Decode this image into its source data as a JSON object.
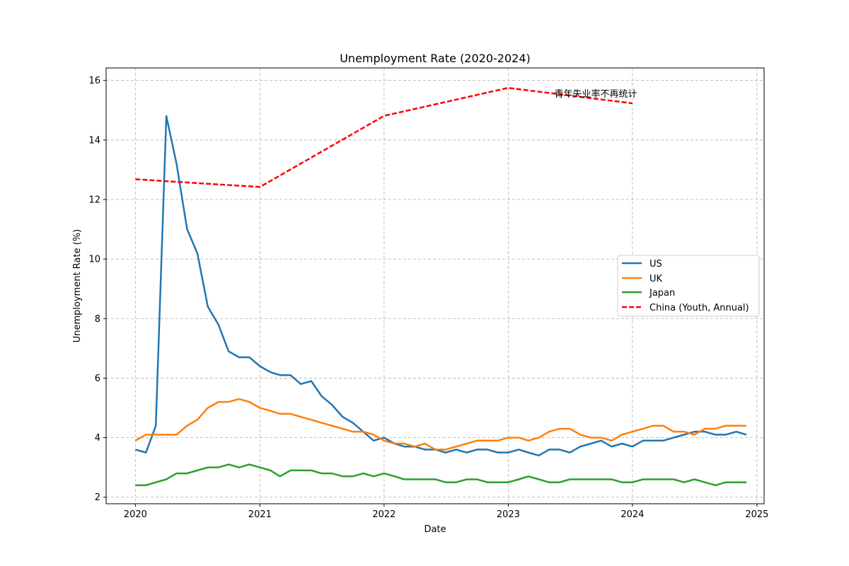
{
  "chart_data": {
    "type": "line",
    "title": "Unemployment Rate (2020-2024)",
    "xlabel": "Date",
    "ylabel": "Unemployment Rate (%)",
    "x_ticks": [
      "2020",
      "2021",
      "2022",
      "2023",
      "2024",
      "2025"
    ],
    "y_ticks": [
      2,
      4,
      6,
      8,
      10,
      12,
      14,
      16
    ],
    "xlim": [
      "2019-10-07",
      "2025-01-22"
    ],
    "ylim": [
      1.78,
      16.42
    ],
    "grid": true,
    "grid_style": "dashed",
    "legend_position": "center-right",
    "annotation": "青年失业率不再统计",
    "months": [
      "2020-01",
      "2020-02",
      "2020-03",
      "2020-04",
      "2020-05",
      "2020-06",
      "2020-07",
      "2020-08",
      "2020-09",
      "2020-10",
      "2020-11",
      "2020-12",
      "2021-01",
      "2021-02",
      "2021-03",
      "2021-04",
      "2021-05",
      "2021-06",
      "2021-07",
      "2021-08",
      "2021-09",
      "2021-10",
      "2021-11",
      "2021-12",
      "2022-01",
      "2022-02",
      "2022-03",
      "2022-04",
      "2022-05",
      "2022-06",
      "2022-07",
      "2022-08",
      "2022-09",
      "2022-10",
      "2022-11",
      "2022-12",
      "2023-01",
      "2023-02",
      "2023-03",
      "2023-04",
      "2023-05",
      "2023-06",
      "2023-07",
      "2023-08",
      "2023-09",
      "2023-10",
      "2023-11",
      "2023-12",
      "2024-01",
      "2024-02",
      "2024-03",
      "2024-04",
      "2024-05",
      "2024-06",
      "2024-07",
      "2024-08",
      "2024-09",
      "2024-10",
      "2024-11",
      "2024-12"
    ],
    "series": [
      {
        "name": "US",
        "color": "#1f77b4",
        "style": "solid",
        "values": [
          3.6,
          3.5,
          4.4,
          14.8,
          13.2,
          11.0,
          10.2,
          8.4,
          7.8,
          6.9,
          6.7,
          6.7,
          6.4,
          6.2,
          6.1,
          6.1,
          5.8,
          5.9,
          5.4,
          5.1,
          4.7,
          4.5,
          4.2,
          3.9,
          4.0,
          3.8,
          3.7,
          3.7,
          3.6,
          3.6,
          3.5,
          3.6,
          3.5,
          3.6,
          3.6,
          3.5,
          3.5,
          3.6,
          3.5,
          3.4,
          3.6,
          3.6,
          3.5,
          3.7,
          3.8,
          3.9,
          3.7,
          3.8,
          3.7,
          3.9,
          3.9,
          3.9,
          4.0,
          4.1,
          4.2,
          4.2,
          4.1,
          4.1,
          4.2,
          4.1
        ]
      },
      {
        "name": "UK",
        "color": "#ff7f0e",
        "style": "solid",
        "values": [
          3.9,
          4.1,
          4.1,
          4.1,
          4.1,
          4.4,
          4.6,
          5.0,
          5.2,
          5.2,
          5.3,
          5.2,
          5.0,
          4.9,
          4.8,
          4.8,
          4.7,
          4.6,
          4.5,
          4.4,
          4.3,
          4.2,
          4.2,
          4.1,
          3.9,
          3.8,
          3.8,
          3.7,
          3.8,
          3.6,
          3.6,
          3.7,
          3.8,
          3.9,
          3.9,
          3.9,
          4.0,
          4.0,
          3.9,
          4.0,
          4.2,
          4.3,
          4.3,
          4.1,
          4.0,
          4.0,
          3.9,
          4.1,
          4.2,
          4.3,
          4.4,
          4.4,
          4.2,
          4.2,
          4.1,
          4.3,
          4.3,
          4.4,
          4.4,
          4.4
        ]
      },
      {
        "name": "Japan",
        "color": "#2ca02c",
        "style": "solid",
        "values": [
          2.4,
          2.4,
          2.5,
          2.6,
          2.8,
          2.8,
          2.9,
          3.0,
          3.0,
          3.1,
          3.0,
          3.1,
          3.0,
          2.9,
          2.7,
          2.9,
          2.9,
          2.9,
          2.8,
          2.8,
          2.7,
          2.7,
          2.8,
          2.7,
          2.8,
          2.7,
          2.6,
          2.6,
          2.6,
          2.6,
          2.5,
          2.5,
          2.6,
          2.6,
          2.5,
          2.5,
          2.5,
          2.6,
          2.7,
          2.6,
          2.5,
          2.5,
          2.6,
          2.6,
          2.6,
          2.6,
          2.6,
          2.5,
          2.5,
          2.6,
          2.6,
          2.6,
          2.6,
          2.5,
          2.6,
          2.5,
          2.4,
          2.5,
          2.5,
          2.5
        ]
      },
      {
        "name": "China (Youth, Annual)",
        "color": "#ff0000",
        "style": "dashed",
        "points": [
          {
            "x": "2020-01",
            "y": 12.68
          },
          {
            "x": "2021-01",
            "y": 12.42
          },
          {
            "x": "2022-01",
            "y": 14.81
          },
          {
            "x": "2023-01",
            "y": 15.75
          },
          {
            "x": "2024-01",
            "y": 15.23
          }
        ]
      }
    ]
  }
}
